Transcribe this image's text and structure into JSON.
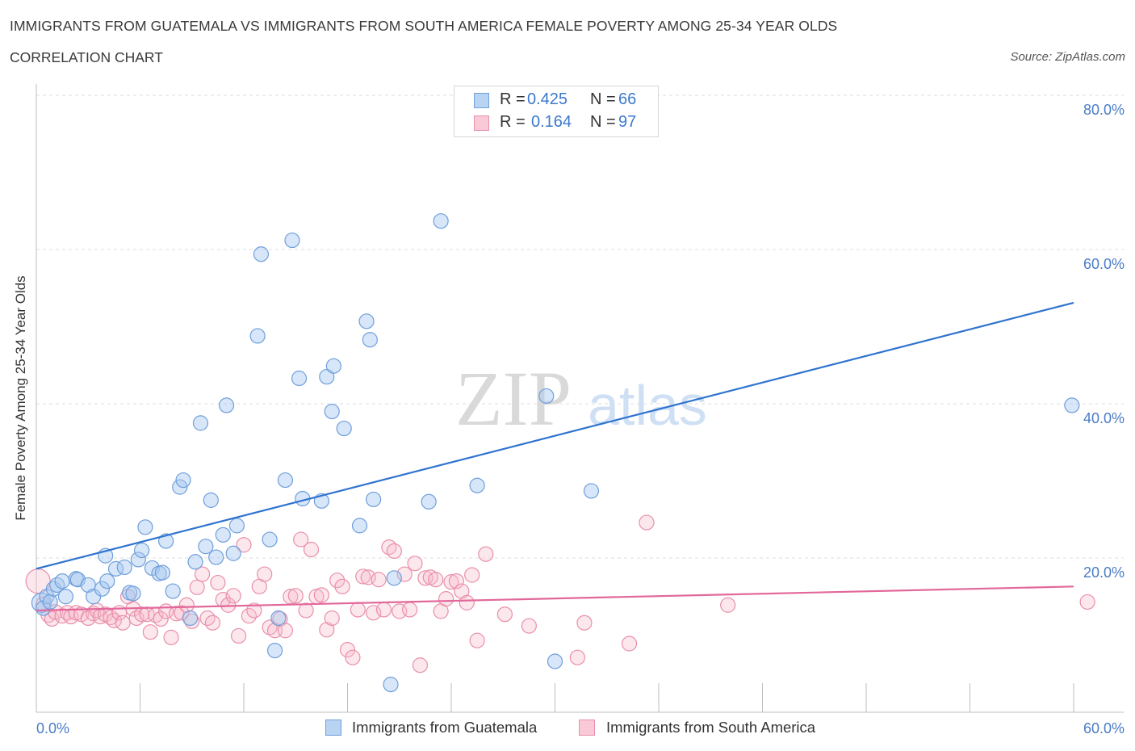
{
  "header": {
    "title": "IMMIGRANTS FROM GUATEMALA VS IMMIGRANTS FROM SOUTH AMERICA FEMALE POVERTY AMONG 25-34 YEAR OLDS",
    "subtitle": "CORRELATION CHART",
    "source": "Source: ZipAtlas.com"
  },
  "watermark": {
    "zip": "ZIP",
    "atlas": "atlas"
  },
  "legend_top": [
    {
      "r_label": "R =",
      "r_value": "0.425",
      "n_label": "N =",
      "n_value": "66"
    },
    {
      "r_label": "R =",
      "r_value": "0.164",
      "n_label": "N =",
      "n_value": "97"
    }
  ],
  "legend_bottom": [
    {
      "label": "Immigrants from Guatemala"
    },
    {
      "label": "Immigrants from South America"
    }
  ],
  "colors": {
    "blue_fill": "#a7c8f0",
    "blue_stroke": "#6f9fdb",
    "blue_line": "#2f73cf",
    "pink_fill": "#f7b9cc",
    "pink_stroke": "#e98fa9",
    "pink_line": "#e2689a",
    "tick_text": "#4a7cc7",
    "grid": "#dddddd"
  },
  "chart_data": {
    "type": "scatter",
    "title": "IMMIGRANTS FROM GUATEMALA VS IMMIGRANTS FROM SOUTH AMERICA FEMALE POVERTY AMONG 25-34 YEAR OLDS",
    "xlabel": "",
    "ylabel": "Female Poverty Among 25-34 Year Olds",
    "xlim": [
      0,
      60
    ],
    "ylim": [
      0,
      80
    ],
    "x_tick_labels": [
      "0.0%",
      "60.0%"
    ],
    "y_ticks": [
      20,
      40,
      60,
      80
    ],
    "y_tick_labels": [
      "20.0%",
      "40.0%",
      "60.0%",
      "80.0%"
    ],
    "grid": "horizontal dashed",
    "legend_position": "top-center",
    "series": [
      {
        "name": "Immigrants from Guatemala",
        "color": "#a7c8f0",
        "trend": {
          "x": [
            0,
            60
          ],
          "y": [
            18.6,
            53.1
          ]
        },
        "points": [
          [
            0.3,
            14.2
          ],
          [
            0.4,
            13.5
          ],
          [
            0.6,
            15.0
          ],
          [
            0.8,
            14.3
          ],
          [
            1.0,
            16.0
          ],
          [
            1.2,
            16.5
          ],
          [
            1.5,
            17.0
          ],
          [
            1.7,
            15.0
          ],
          [
            2.3,
            17.3
          ],
          [
            2.4,
            17.2
          ],
          [
            3.0,
            16.5
          ],
          [
            3.3,
            15.0
          ],
          [
            3.8,
            16.0
          ],
          [
            4.1,
            17.0
          ],
          [
            4.0,
            20.3
          ],
          [
            4.6,
            18.6
          ],
          [
            5.1,
            18.8
          ],
          [
            5.4,
            15.5
          ],
          [
            5.6,
            15.4
          ],
          [
            5.9,
            19.8
          ],
          [
            6.1,
            21.0
          ],
          [
            6.3,
            24.0
          ],
          [
            6.7,
            18.7
          ],
          [
            7.1,
            18.0
          ],
          [
            7.3,
            18.1
          ],
          [
            7.5,
            22.2
          ],
          [
            7.9,
            15.7
          ],
          [
            8.3,
            29.2
          ],
          [
            8.5,
            30.1
          ],
          [
            8.9,
            12.2
          ],
          [
            9.2,
            19.5
          ],
          [
            9.5,
            37.5
          ],
          [
            9.8,
            21.5
          ],
          [
            10.1,
            27.5
          ],
          [
            10.4,
            20.1
          ],
          [
            10.8,
            23.0
          ],
          [
            11.0,
            39.8
          ],
          [
            11.4,
            20.6
          ],
          [
            11.6,
            24.2
          ],
          [
            12.8,
            48.8
          ],
          [
            13.0,
            59.4
          ],
          [
            13.5,
            22.4
          ],
          [
            13.8,
            8.0
          ],
          [
            14.0,
            12.2
          ],
          [
            14.4,
            30.1
          ],
          [
            14.8,
            61.2
          ],
          [
            15.2,
            43.3
          ],
          [
            15.4,
            27.7
          ],
          [
            16.5,
            27.4
          ],
          [
            16.8,
            43.5
          ],
          [
            17.1,
            39.0
          ],
          [
            17.2,
            44.9
          ],
          [
            17.8,
            36.8
          ],
          [
            18.7,
            24.2
          ],
          [
            19.1,
            50.7
          ],
          [
            19.3,
            48.3
          ],
          [
            19.5,
            27.6
          ],
          [
            20.5,
            3.6
          ],
          [
            20.7,
            17.4
          ],
          [
            22.7,
            27.3
          ],
          [
            23.4,
            63.7
          ],
          [
            25.5,
            29.4
          ],
          [
            29.5,
            41.0
          ],
          [
            30.0,
            6.6
          ],
          [
            32.1,
            28.7
          ],
          [
            59.9,
            39.8
          ]
        ]
      },
      {
        "name": "Immigrants from South America",
        "color": "#f7b9cc",
        "trend": {
          "x": [
            0,
            60
          ],
          "y": [
            13.2,
            16.3
          ]
        },
        "points": [
          [
            0.1,
            17.0
          ],
          [
            0.4,
            14.0
          ],
          [
            0.7,
            12.6
          ],
          [
            0.9,
            12.1
          ],
          [
            1.1,
            13.0
          ],
          [
            1.5,
            12.5
          ],
          [
            1.8,
            12.9
          ],
          [
            2.0,
            12.4
          ],
          [
            2.3,
            12.9
          ],
          [
            2.6,
            12.7
          ],
          [
            3.0,
            12.2
          ],
          [
            3.3,
            12.8
          ],
          [
            3.5,
            13.2
          ],
          [
            3.7,
            12.4
          ],
          [
            4.0,
            12.7
          ],
          [
            4.3,
            12.3
          ],
          [
            4.5,
            11.9
          ],
          [
            4.8,
            12.9
          ],
          [
            5.0,
            11.6
          ],
          [
            5.3,
            15.0
          ],
          [
            5.6,
            13.4
          ],
          [
            5.8,
            12.2
          ],
          [
            6.1,
            12.7
          ],
          [
            6.4,
            12.7
          ],
          [
            6.6,
            10.4
          ],
          [
            6.9,
            12.6
          ],
          [
            7.2,
            12.1
          ],
          [
            7.5,
            13.1
          ],
          [
            7.8,
            9.7
          ],
          [
            8.1,
            12.8
          ],
          [
            8.4,
            12.9
          ],
          [
            8.7,
            13.9
          ],
          [
            9.0,
            11.8
          ],
          [
            9.3,
            16.2
          ],
          [
            9.6,
            17.9
          ],
          [
            9.9,
            12.2
          ],
          [
            10.2,
            11.6
          ],
          [
            10.5,
            16.8
          ],
          [
            10.8,
            14.6
          ],
          [
            11.1,
            13.9
          ],
          [
            11.4,
            15.1
          ],
          [
            11.7,
            9.9
          ],
          [
            12.0,
            21.7
          ],
          [
            12.3,
            12.5
          ],
          [
            12.6,
            13.2
          ],
          [
            12.9,
            16.3
          ],
          [
            13.2,
            17.9
          ],
          [
            13.5,
            11.0
          ],
          [
            13.8,
            10.6
          ],
          [
            14.1,
            12.1
          ],
          [
            14.4,
            10.6
          ],
          [
            14.7,
            15.0
          ],
          [
            15.0,
            15.1
          ],
          [
            15.3,
            22.4
          ],
          [
            15.6,
            13.2
          ],
          [
            15.9,
            21.1
          ],
          [
            16.2,
            15.0
          ],
          [
            16.5,
            15.2
          ],
          [
            16.8,
            10.7
          ],
          [
            17.1,
            12.2
          ],
          [
            17.4,
            17.1
          ],
          [
            17.7,
            16.3
          ],
          [
            18.0,
            8.1
          ],
          [
            18.3,
            7.1
          ],
          [
            18.6,
            13.3
          ],
          [
            18.9,
            17.6
          ],
          [
            19.2,
            17.5
          ],
          [
            19.5,
            12.9
          ],
          [
            19.8,
            17.2
          ],
          [
            20.1,
            13.3
          ],
          [
            20.4,
            21.4
          ],
          [
            20.7,
            20.9
          ],
          [
            21.0,
            13.1
          ],
          [
            21.3,
            17.9
          ],
          [
            21.6,
            13.3
          ],
          [
            21.9,
            19.3
          ],
          [
            22.2,
            6.1
          ],
          [
            22.5,
            17.4
          ],
          [
            22.8,
            17.5
          ],
          [
            23.1,
            17.2
          ],
          [
            23.4,
            13.1
          ],
          [
            23.7,
            14.7
          ],
          [
            24.0,
            16.9
          ],
          [
            24.3,
            17.0
          ],
          [
            24.6,
            15.7
          ],
          [
            24.9,
            14.2
          ],
          [
            25.2,
            17.8
          ],
          [
            25.5,
            9.3
          ],
          [
            26.0,
            20.5
          ],
          [
            27.1,
            12.7
          ],
          [
            28.5,
            11.2
          ],
          [
            31.3,
            7.1
          ],
          [
            31.7,
            11.6
          ],
          [
            34.3,
            8.9
          ],
          [
            35.3,
            24.6
          ],
          [
            40.0,
            13.9
          ],
          [
            60.8,
            14.3
          ]
        ]
      }
    ]
  }
}
